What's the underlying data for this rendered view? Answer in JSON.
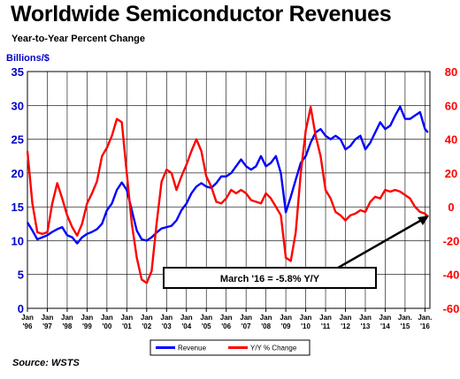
{
  "title": "Worldwide Semiconductor Revenues",
  "subtitle": "Year-to-Year Percent Change",
  "source": "Source: WSTS",
  "chart_data": {
    "type": "line",
    "ylabel_left": "Billions/$",
    "y_left_ticks": [
      "0",
      "5",
      "10",
      "15",
      "20",
      "25",
      "30",
      "35"
    ],
    "y_right_ticks": [
      "-60",
      "-40",
      "-20",
      "0",
      "20",
      "40",
      "60",
      "80"
    ],
    "ylim_left": [
      0,
      35
    ],
    "ylim_right": [
      -60,
      80
    ],
    "x_months": [
      "Jan",
      "Jan",
      "Jan",
      "Jan",
      "Jan",
      "Jan",
      "Jan",
      "Jan",
      "Jan",
      "Jan",
      "Jan",
      "Jan",
      "Jan",
      "Jan",
      "Jan",
      "Jan",
      "Jan",
      "Jan",
      "Jan",
      "Jan.",
      "Jan."
    ],
    "x_years": [
      "'96",
      "'97",
      "'98",
      "'99",
      "'00",
      "'01",
      "'02",
      "'03",
      "'04",
      "'05",
      "'06",
      "'07",
      "'08",
      "'09",
      "'10",
      "'11",
      "'12",
      "'13",
      "'14",
      "'15",
      "'16"
    ],
    "xlim": [
      1996.0,
      2016.25
    ],
    "grid": true,
    "colors": {
      "revenue": "#0000ff",
      "yoy": "#ff0000",
      "axis_left": "#0000cc",
      "axis_right": "#ff0000"
    },
    "legend_position": "bottom",
    "annotation": "March '16 = -5.8% Y/Y",
    "series": [
      {
        "name": "Revenue",
        "axis": "left",
        "points": [
          [
            1996.0,
            12.7
          ],
          [
            1996.25,
            11.5
          ],
          [
            1996.5,
            10.2
          ],
          [
            1996.75,
            10.5
          ],
          [
            1997.0,
            10.8
          ],
          [
            1997.25,
            11.3
          ],
          [
            1997.5,
            11.7
          ],
          [
            1997.75,
            12.0
          ],
          [
            1998.0,
            10.8
          ],
          [
            1998.25,
            10.5
          ],
          [
            1998.5,
            9.6
          ],
          [
            1998.75,
            10.5
          ],
          [
            1999.0,
            11.0
          ],
          [
            1999.25,
            11.3
          ],
          [
            1999.5,
            11.7
          ],
          [
            1999.75,
            12.5
          ],
          [
            2000.0,
            14.5
          ],
          [
            2000.25,
            15.5
          ],
          [
            2000.5,
            17.5
          ],
          [
            2000.75,
            18.6
          ],
          [
            2001.0,
            17.5
          ],
          [
            2001.25,
            14.5
          ],
          [
            2001.5,
            11.5
          ],
          [
            2001.75,
            10.2
          ],
          [
            2002.0,
            10.0
          ],
          [
            2002.25,
            10.5
          ],
          [
            2002.5,
            11.2
          ],
          [
            2002.75,
            11.8
          ],
          [
            2003.0,
            12.0
          ],
          [
            2003.25,
            12.2
          ],
          [
            2003.5,
            13.0
          ],
          [
            2003.75,
            14.5
          ],
          [
            2004.0,
            15.5
          ],
          [
            2004.25,
            17.0
          ],
          [
            2004.5,
            18.0
          ],
          [
            2004.75,
            18.5
          ],
          [
            2005.0,
            18.0
          ],
          [
            2005.25,
            17.8
          ],
          [
            2005.5,
            18.5
          ],
          [
            2005.75,
            19.5
          ],
          [
            2006.0,
            19.5
          ],
          [
            2006.25,
            20.0
          ],
          [
            2006.5,
            21.0
          ],
          [
            2006.75,
            22.0
          ],
          [
            2007.0,
            21.0
          ],
          [
            2007.25,
            20.5
          ],
          [
            2007.5,
            21.0
          ],
          [
            2007.75,
            22.5
          ],
          [
            2008.0,
            21.0
          ],
          [
            2008.25,
            21.5
          ],
          [
            2008.5,
            22.5
          ],
          [
            2008.75,
            20.0
          ],
          [
            2009.0,
            14.2
          ],
          [
            2009.25,
            16.5
          ],
          [
            2009.5,
            19.0
          ],
          [
            2009.75,
            21.5
          ],
          [
            2010.0,
            22.5
          ],
          [
            2010.25,
            24.5
          ],
          [
            2010.5,
            26.0
          ],
          [
            2010.75,
            26.5
          ],
          [
            2011.0,
            25.5
          ],
          [
            2011.25,
            25.0
          ],
          [
            2011.5,
            25.5
          ],
          [
            2011.75,
            25.0
          ],
          [
            2012.0,
            23.5
          ],
          [
            2012.25,
            24.0
          ],
          [
            2012.5,
            25.0
          ],
          [
            2012.75,
            25.5
          ],
          [
            2013.0,
            23.5
          ],
          [
            2013.25,
            24.5
          ],
          [
            2013.5,
            26.0
          ],
          [
            2013.75,
            27.5
          ],
          [
            2014.0,
            26.5
          ],
          [
            2014.25,
            27.0
          ],
          [
            2014.5,
            28.5
          ],
          [
            2014.75,
            29.8
          ],
          [
            2015.0,
            28.0
          ],
          [
            2015.25,
            28.0
          ],
          [
            2015.5,
            28.5
          ],
          [
            2015.75,
            29.0
          ],
          [
            2016.0,
            26.5
          ],
          [
            2016.15,
            26.0
          ]
        ]
      },
      {
        "name": "Y/Y % Change",
        "axis": "right",
        "points": [
          [
            1996.0,
            33.0
          ],
          [
            1996.25,
            2.0
          ],
          [
            1996.5,
            -15.0
          ],
          [
            1996.75,
            -16.0
          ],
          [
            1997.0,
            -15.0
          ],
          [
            1997.25,
            2.0
          ],
          [
            1997.5,
            14.0
          ],
          [
            1997.75,
            5.0
          ],
          [
            1998.0,
            -5.0
          ],
          [
            1998.25,
            -12.0
          ],
          [
            1998.5,
            -17.0
          ],
          [
            1998.75,
            -10.0
          ],
          [
            1999.0,
            2.0
          ],
          [
            1999.25,
            8.0
          ],
          [
            1999.5,
            15.0
          ],
          [
            1999.75,
            30.0
          ],
          [
            2000.0,
            35.0
          ],
          [
            2000.25,
            42.0
          ],
          [
            2000.5,
            52.0
          ],
          [
            2000.75,
            50.0
          ],
          [
            2001.0,
            20.0
          ],
          [
            2001.25,
            -10.0
          ],
          [
            2001.5,
            -30.0
          ],
          [
            2001.75,
            -43.0
          ],
          [
            2002.0,
            -45.0
          ],
          [
            2002.25,
            -38.0
          ],
          [
            2002.5,
            -10.0
          ],
          [
            2002.75,
            15.0
          ],
          [
            2003.0,
            22.0
          ],
          [
            2003.25,
            20.0
          ],
          [
            2003.5,
            10.0
          ],
          [
            2003.75,
            18.0
          ],
          [
            2004.0,
            25.0
          ],
          [
            2004.25,
            33.0
          ],
          [
            2004.5,
            40.0
          ],
          [
            2004.75,
            33.0
          ],
          [
            2005.0,
            18.0
          ],
          [
            2005.25,
            12.0
          ],
          [
            2005.5,
            3.0
          ],
          [
            2005.75,
            2.0
          ],
          [
            2006.0,
            5.0
          ],
          [
            2006.25,
            10.0
          ],
          [
            2006.5,
            8.0
          ],
          [
            2006.75,
            10.0
          ],
          [
            2007.0,
            8.0
          ],
          [
            2007.25,
            4.0
          ],
          [
            2007.5,
            3.0
          ],
          [
            2007.75,
            2.0
          ],
          [
            2008.0,
            8.0
          ],
          [
            2008.25,
            5.0
          ],
          [
            2008.5,
            0.0
          ],
          [
            2008.75,
            -5.0
          ],
          [
            2009.0,
            -30.0
          ],
          [
            2009.25,
            -32.0
          ],
          [
            2009.5,
            -15.0
          ],
          [
            2009.75,
            20.0
          ],
          [
            2010.0,
            45.0
          ],
          [
            2010.25,
            59.0
          ],
          [
            2010.5,
            42.0
          ],
          [
            2010.75,
            30.0
          ],
          [
            2011.0,
            10.0
          ],
          [
            2011.25,
            5.0
          ],
          [
            2011.5,
            -3.0
          ],
          [
            2011.75,
            -5.0
          ],
          [
            2012.0,
            -8.0
          ],
          [
            2012.25,
            -5.0
          ],
          [
            2012.5,
            -4.0
          ],
          [
            2012.75,
            -2.0
          ],
          [
            2013.0,
            -3.0
          ],
          [
            2013.25,
            3.0
          ],
          [
            2013.5,
            6.0
          ],
          [
            2013.75,
            5.0
          ],
          [
            2014.0,
            10.0
          ],
          [
            2014.25,
            9.0
          ],
          [
            2014.5,
            10.0
          ],
          [
            2014.75,
            9.0
          ],
          [
            2015.0,
            7.0
          ],
          [
            2015.25,
            5.0
          ],
          [
            2015.5,
            0.0
          ],
          [
            2015.75,
            -3.0
          ],
          [
            2016.0,
            -4.0
          ],
          [
            2016.15,
            -5.8
          ]
        ]
      }
    ]
  }
}
